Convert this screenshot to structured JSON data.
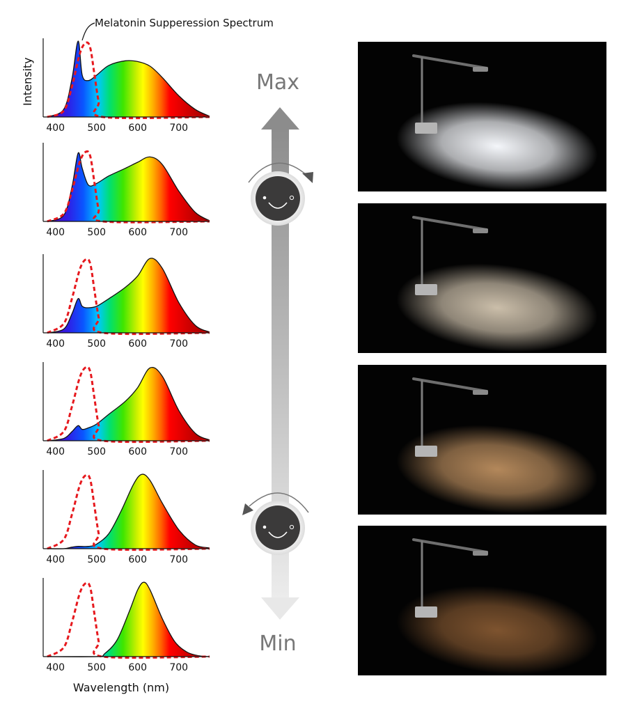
{
  "figure": {
    "annotation": "Melatonin Supperession Spectrum",
    "ylabel": "Intensity",
    "xlabel": "Wavelength (nm)",
    "slider_max_label": "Max",
    "slider_min_label": "Min"
  },
  "chart_data": [
    {
      "type": "area",
      "title": "",
      "xlabel": "",
      "ylabel": "Intensity",
      "xlim": [
        370,
        775
      ],
      "ticks": [
        400,
        500,
        600,
        700
      ],
      "series": [
        {
          "kind": "led",
          "x": [
            380,
            420,
            440,
            455,
            465,
            480,
            500,
            530,
            570,
            600,
            630,
            660,
            700,
            740,
            775
          ],
          "y": [
            0,
            0.1,
            0.5,
            1.0,
            0.55,
            0.48,
            0.55,
            0.68,
            0.74,
            0.73,
            0.67,
            0.52,
            0.28,
            0.1,
            0.01
          ]
        },
        {
          "kind": "melatonin",
          "x": [
            380,
            420,
            440,
            460,
            475,
            485,
            495,
            505,
            515,
            775
          ],
          "y": [
            0,
            0.08,
            0.4,
            0.85,
            0.98,
            0.9,
            0.55,
            0.2,
            0,
            0
          ]
        }
      ]
    },
    {
      "type": "area",
      "title": "",
      "xlabel": "",
      "ylabel": "",
      "xlim": [
        370,
        775
      ],
      "ticks": [
        400,
        500,
        600,
        700
      ],
      "series": [
        {
          "kind": "led",
          "x": [
            380,
            420,
            440,
            455,
            465,
            480,
            500,
            530,
            570,
            600,
            630,
            660,
            700,
            740,
            775
          ],
          "y": [
            0,
            0.08,
            0.45,
            0.9,
            0.7,
            0.48,
            0.5,
            0.6,
            0.7,
            0.78,
            0.85,
            0.75,
            0.4,
            0.12,
            0.01
          ]
        },
        {
          "kind": "melatonin",
          "x": [
            380,
            420,
            440,
            460,
            475,
            485,
            495,
            505,
            515,
            775
          ],
          "y": [
            0,
            0.1,
            0.4,
            0.8,
            0.92,
            0.85,
            0.5,
            0.15,
            0,
            0
          ]
        }
      ]
    },
    {
      "type": "area",
      "title": "",
      "xlabel": "",
      "ylabel": "",
      "xlim": [
        370,
        775
      ],
      "ticks": [
        400,
        500,
        600,
        700
      ],
      "series": [
        {
          "kind": "led",
          "x": [
            380,
            420,
            440,
            455,
            465,
            480,
            500,
            530,
            570,
            600,
            630,
            660,
            700,
            740,
            775
          ],
          "y": [
            0,
            0.05,
            0.25,
            0.45,
            0.35,
            0.33,
            0.35,
            0.45,
            0.6,
            0.75,
            0.98,
            0.85,
            0.4,
            0.1,
            0.01
          ]
        },
        {
          "kind": "melatonin",
          "x": [
            380,
            420,
            440,
            460,
            475,
            485,
            495,
            505,
            515,
            775
          ],
          "y": [
            0,
            0.12,
            0.45,
            0.85,
            0.97,
            0.9,
            0.55,
            0.2,
            0,
            0
          ]
        }
      ]
    },
    {
      "type": "area",
      "title": "",
      "xlabel": "",
      "ylabel": "",
      "xlim": [
        370,
        775
      ],
      "ticks": [
        400,
        500,
        600,
        700
      ],
      "series": [
        {
          "kind": "led",
          "x": [
            380,
            420,
            440,
            455,
            465,
            480,
            500,
            530,
            570,
            600,
            630,
            660,
            700,
            740,
            775
          ],
          "y": [
            0,
            0.03,
            0.12,
            0.2,
            0.15,
            0.17,
            0.22,
            0.35,
            0.52,
            0.7,
            0.96,
            0.85,
            0.4,
            0.1,
            0.01
          ]
        },
        {
          "kind": "melatonin",
          "x": [
            380,
            420,
            440,
            460,
            475,
            485,
            495,
            505,
            515,
            775
          ],
          "y": [
            0,
            0.12,
            0.45,
            0.85,
            0.97,
            0.9,
            0.55,
            0.2,
            0,
            0
          ]
        }
      ]
    },
    {
      "type": "area",
      "title": "",
      "xlabel": "",
      "ylabel": "",
      "xlim": [
        370,
        775
      ],
      "ticks": [
        400,
        500,
        600,
        700
      ],
      "series": [
        {
          "kind": "led",
          "x": [
            380,
            420,
            440,
            455,
            480,
            500,
            530,
            560,
            590,
            610,
            630,
            660,
            700,
            740,
            775
          ],
          "y": [
            0,
            0,
            0.02,
            0.03,
            0.03,
            0.06,
            0.2,
            0.5,
            0.85,
            0.98,
            0.9,
            0.6,
            0.25,
            0.05,
            0.01
          ]
        },
        {
          "kind": "melatonin",
          "x": [
            380,
            420,
            440,
            460,
            475,
            485,
            495,
            505,
            515,
            775
          ],
          "y": [
            0,
            0.12,
            0.45,
            0.85,
            0.97,
            0.9,
            0.55,
            0.2,
            0,
            0
          ]
        }
      ]
    },
    {
      "type": "area",
      "title": "",
      "xlabel": "Wavelength (nm)",
      "ylabel": "",
      "xlim": [
        370,
        775
      ],
      "ticks": [
        400,
        500,
        600,
        700
      ],
      "series": [
        {
          "kind": "led",
          "x": [
            380,
            500,
            520,
            550,
            580,
            600,
            615,
            630,
            660,
            690,
            720,
            750,
            775
          ],
          "y": [
            0,
            0,
            0.04,
            0.22,
            0.6,
            0.88,
            0.98,
            0.88,
            0.5,
            0.2,
            0.06,
            0.01,
            0
          ]
        },
        {
          "kind": "melatonin",
          "x": [
            380,
            420,
            440,
            460,
            475,
            485,
            495,
            505,
            515,
            775
          ],
          "y": [
            0,
            0.12,
            0.45,
            0.85,
            0.97,
            0.9,
            0.55,
            0.2,
            0,
            0
          ]
        }
      ]
    }
  ],
  "photos": [
    {
      "light_color": "#f4f6fa",
      "brightness": 1.0
    },
    {
      "light_color": "#eedfc7",
      "brightness": 0.85
    },
    {
      "light_color": "#eeb478",
      "brightness": 0.75
    },
    {
      "light_color": "#c9854a",
      "brightness": 0.62
    }
  ],
  "colors": {
    "melatonin_curve": "#e6191e",
    "arrow": "#8c8c8c",
    "knob": "#3b3a3a"
  }
}
